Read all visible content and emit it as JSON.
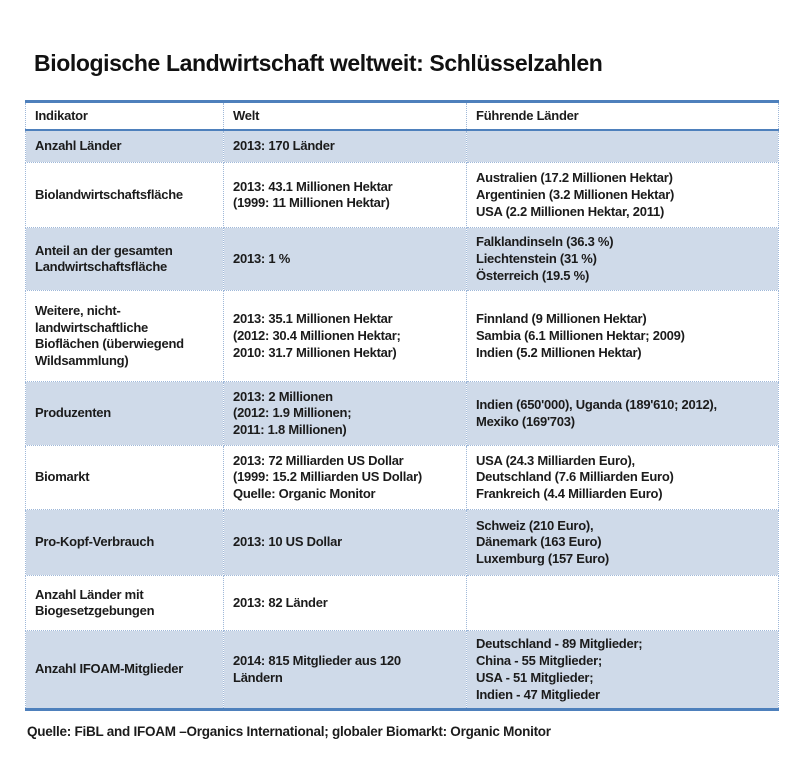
{
  "page": {
    "title": "Biologische Landwirtschaft weltweit: Schlüsselzahlen",
    "footer": "Quelle: FiBL and IFOAM –Organics International; globaler Biomarkt: Organic Monitor"
  },
  "colors": {
    "accent": "#4e80bc",
    "band": "#cfdae9",
    "dotted": "#9fb8d9",
    "ink": "#1b1b1b"
  },
  "table": {
    "headers": [
      "Indikator",
      "Welt",
      "Führende Länder"
    ],
    "rows": [
      {
        "indicator": "Anzahl Länder",
        "welt": "2013: 170 Länder",
        "leaders": ""
      },
      {
        "indicator": "Biolandwirtschaftsfläche",
        "welt": "2013: 43.1 Millionen Hektar\n(1999: 11 Millionen Hektar)",
        "leaders": "Australien (17.2 Millionen Hektar)\nArgentinien (3.2 Millionen Hektar)\nUSA (2.2 Millionen Hektar, 2011)"
      },
      {
        "indicator": "Anteil an der gesamten\nLandwirtschaftsfläche",
        "welt": "2013: 1 %",
        "leaders": "Falklandinseln (36.3 %)\nLiechtenstein (31 %)\nÖsterreich (19.5 %)"
      },
      {
        "indicator": "Weitere, nicht-\nlandwirtschaftliche\nBioflächen (überwiegend\nWildsammlung)",
        "welt": "2013: 35.1 Millionen Hektar\n(2012: 30.4 Millionen Hektar;\n2010: 31.7 Millionen Hektar)",
        "leaders": "Finnland (9 Millionen Hektar)\nSambia (6.1 Millionen Hektar; 2009)\nIndien (5.2 Millionen Hektar)"
      },
      {
        "indicator": "Produzenten",
        "welt": "2013: 2 Millionen\n(2012: 1.9 Millionen;\n2011: 1.8 Millionen)",
        "leaders": "Indien (650'000), Uganda (189'610; 2012),\nMexiko (169'703)"
      },
      {
        "indicator": "Biomarkt",
        "welt": "2013: 72 Milliarden US Dollar\n(1999: 15.2 Milliarden US Dollar)\nQuelle: Organic Monitor",
        "leaders": "USA (24.3 Milliarden Euro),\nDeutschland (7.6 Milliarden Euro)\nFrankreich (4.4 Milliarden Euro)"
      },
      {
        "indicator": "Pro-Kopf-Verbrauch",
        "welt": "2013: 10 US Dollar",
        "leaders": "Schweiz (210 Euro),\nDänemark (163 Euro)\nLuxemburg (157 Euro)"
      },
      {
        "indicator": "Anzahl Länder mit\nBiogesetzgebungen",
        "welt": "2013: 82 Länder",
        "leaders": ""
      },
      {
        "indicator": "Anzahl IFOAM-Mitglieder",
        "welt": "2014: 815 Mitglieder aus 120\nLändern",
        "leaders": "Deutschland - 89 Mitglieder;\nChina - 55 Mitglieder;\nUSA - 51 Mitglieder;\nIndien - 47 Mitglieder"
      }
    ]
  }
}
